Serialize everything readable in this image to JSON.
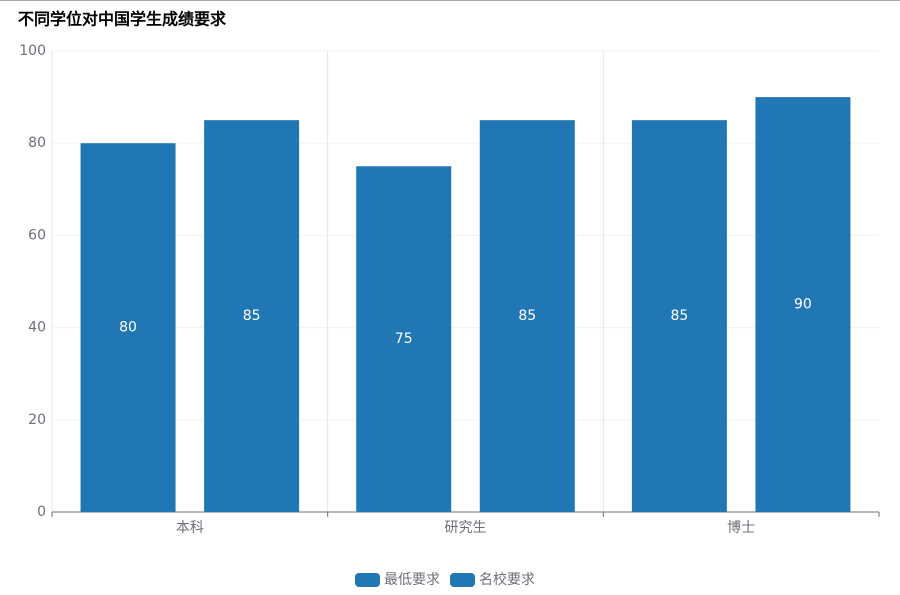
{
  "chart_data": {
    "type": "bar",
    "title": "不同学位对中国学生成绩要求",
    "categories": [
      "本科",
      "研究生",
      "博士"
    ],
    "series": [
      {
        "name": "最低要求",
        "color": "#2177b4",
        "values": [
          80,
          75,
          85
        ]
      },
      {
        "name": "名校要求",
        "color": "#2177b4",
        "values": [
          85,
          85,
          90
        ]
      }
    ],
    "ylim": [
      0,
      100
    ],
    "yticks": [
      0,
      20,
      40,
      60,
      80,
      100
    ],
    "grid": true,
    "legend": "bottom"
  }
}
